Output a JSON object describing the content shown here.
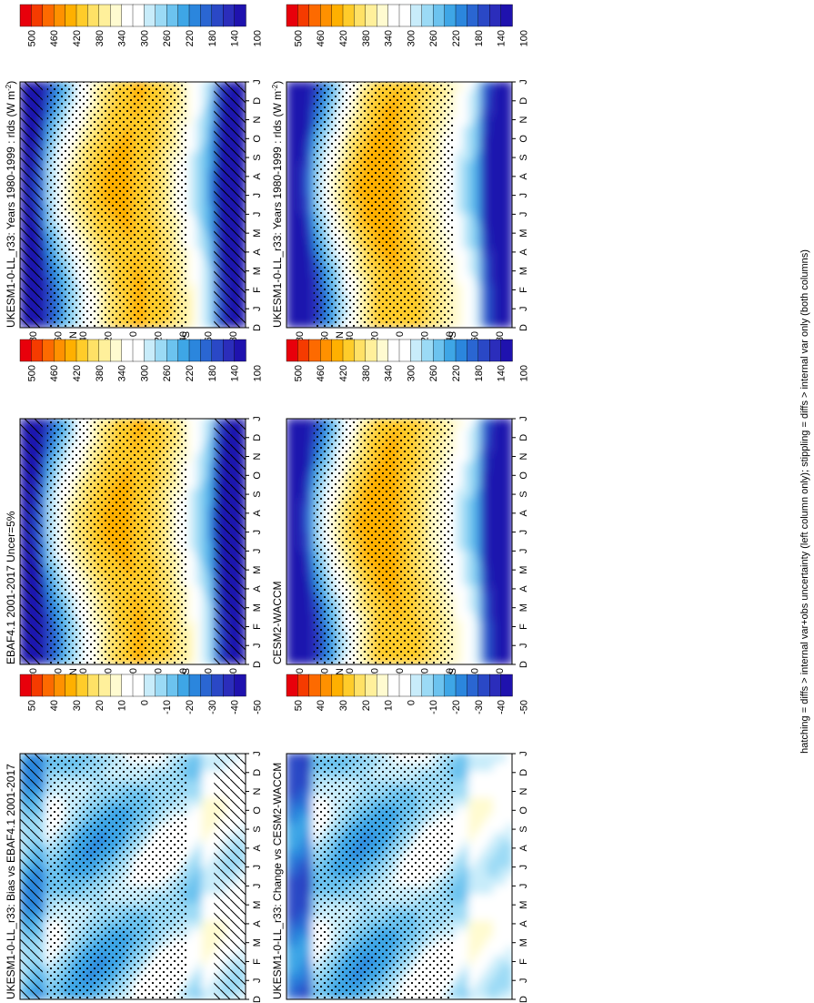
{
  "footnote": "hatching = diffs > internal var+obs uncertainty (left column only); stippling = diffs > internal var only (both columns)",
  "month_labels": [
    "D",
    "J",
    "F",
    "M",
    "A",
    "M",
    "J",
    "J",
    "A",
    "S",
    "O",
    "N",
    "D",
    "J"
  ],
  "lat_labels": [
    "80",
    "60",
    "40",
    "20",
    "0",
    "20",
    "40",
    "60",
    "80"
  ],
  "lat_text": {
    "north": "°N",
    "south": "°S"
  },
  "colorbars": {
    "absolute": {
      "labels": [
        "500",
        "460",
        "420",
        "380",
        "340",
        "300",
        "260",
        "220",
        "180",
        "140",
        "100"
      ],
      "colors": [
        "#e8000b",
        "#f53b00",
        "#fd6a00",
        "#ff9100",
        "#ffb000",
        "#ffcc2a",
        "#ffe166",
        "#fff09b",
        "#fffbd0",
        "#ffffff",
        "#ffffff",
        "#c8ecfa",
        "#9bdaf5",
        "#6cc3ef",
        "#3ea6e6",
        "#2b86dd",
        "#2a66d2",
        "#2a48c6",
        "#2b2dbb",
        "#1f12ae"
      ]
    },
    "difference": {
      "labels": [
        "50",
        "40",
        "30",
        "20",
        "10",
        "0",
        "-10",
        "-20",
        "-30",
        "-40",
        "-50"
      ],
      "colors": [
        "#e8000b",
        "#f53b00",
        "#fd6a00",
        "#ff9100",
        "#ffb000",
        "#ffcc2a",
        "#ffe166",
        "#fff09b",
        "#fffbd0",
        "#ffffff",
        "#ffffff",
        "#c8ecfa",
        "#9bdaf5",
        "#6cc3ef",
        "#3ea6e6",
        "#2b86dd",
        "#2a66d2",
        "#2a48c6",
        "#2b2dbb",
        "#1f12ae"
      ]
    }
  },
  "chart_data": [
    {
      "id": "p1",
      "type": "heatmap",
      "scale": "absolute",
      "hatch": true,
      "stipple": true,
      "title": "UKESM1-0-LL_r33: Years 1980-1999 : rlds (W m",
      "title_sup": "-2",
      "title_tail": ")",
      "x": [
        "D",
        "J",
        "F",
        "M",
        "A",
        "M",
        "J",
        "J",
        "A",
        "S",
        "O",
        "N",
        "D",
        "J"
      ],
      "y_range": [
        -90,
        90
      ]
    },
    {
      "id": "p2",
      "type": "heatmap",
      "scale": "absolute",
      "hatch": false,
      "stipple": true,
      "title": "UKESM1-0-LL_r33: Years 1980-1999 : rlds (W m",
      "title_sup": "-2",
      "title_tail": ")",
      "x": [
        "D",
        "J",
        "F",
        "M",
        "A",
        "M",
        "J",
        "J",
        "A",
        "S",
        "O",
        "N",
        "D",
        "J"
      ],
      "y_range": [
        -90,
        90
      ]
    },
    {
      "id": "p3",
      "type": "heatmap",
      "scale": "absolute",
      "hatch": true,
      "stipple": true,
      "title": "EBAF4.1 2001-2017 Uncer=5%",
      "x": [
        "D",
        "J",
        "F",
        "M",
        "A",
        "M",
        "J",
        "J",
        "A",
        "S",
        "O",
        "N",
        "D",
        "J"
      ],
      "y_range": [
        -90,
        90
      ]
    },
    {
      "id": "p4",
      "type": "heatmap",
      "scale": "absolute",
      "hatch": false,
      "stipple": true,
      "title": "CESM2-WACCM",
      "x": [
        "D",
        "J",
        "F",
        "M",
        "A",
        "M",
        "J",
        "J",
        "A",
        "S",
        "O",
        "N",
        "D",
        "J"
      ],
      "y_range": [
        -90,
        90
      ]
    },
    {
      "id": "p5",
      "type": "heatmap",
      "scale": "difference",
      "hatch": true,
      "stipple": true,
      "title": "UKESM1-0-LL_r33: Bias vs EBAF4.1 2001-2017",
      "x": [
        "D",
        "J",
        "F",
        "M",
        "A",
        "M",
        "J",
        "J",
        "A",
        "S",
        "O",
        "N",
        "D",
        "J"
      ],
      "y_range": [
        -90,
        90
      ]
    },
    {
      "id": "p6",
      "type": "heatmap",
      "scale": "difference",
      "hatch": false,
      "stipple": true,
      "title": "UKESM1-0-LL_r33: Change vs CESM2-WACCM",
      "x": [
        "D",
        "J",
        "F",
        "M",
        "A",
        "M",
        "J",
        "J",
        "A",
        "S",
        "O",
        "N",
        "D",
        "J"
      ],
      "y_range": [
        -90,
        90
      ]
    }
  ]
}
